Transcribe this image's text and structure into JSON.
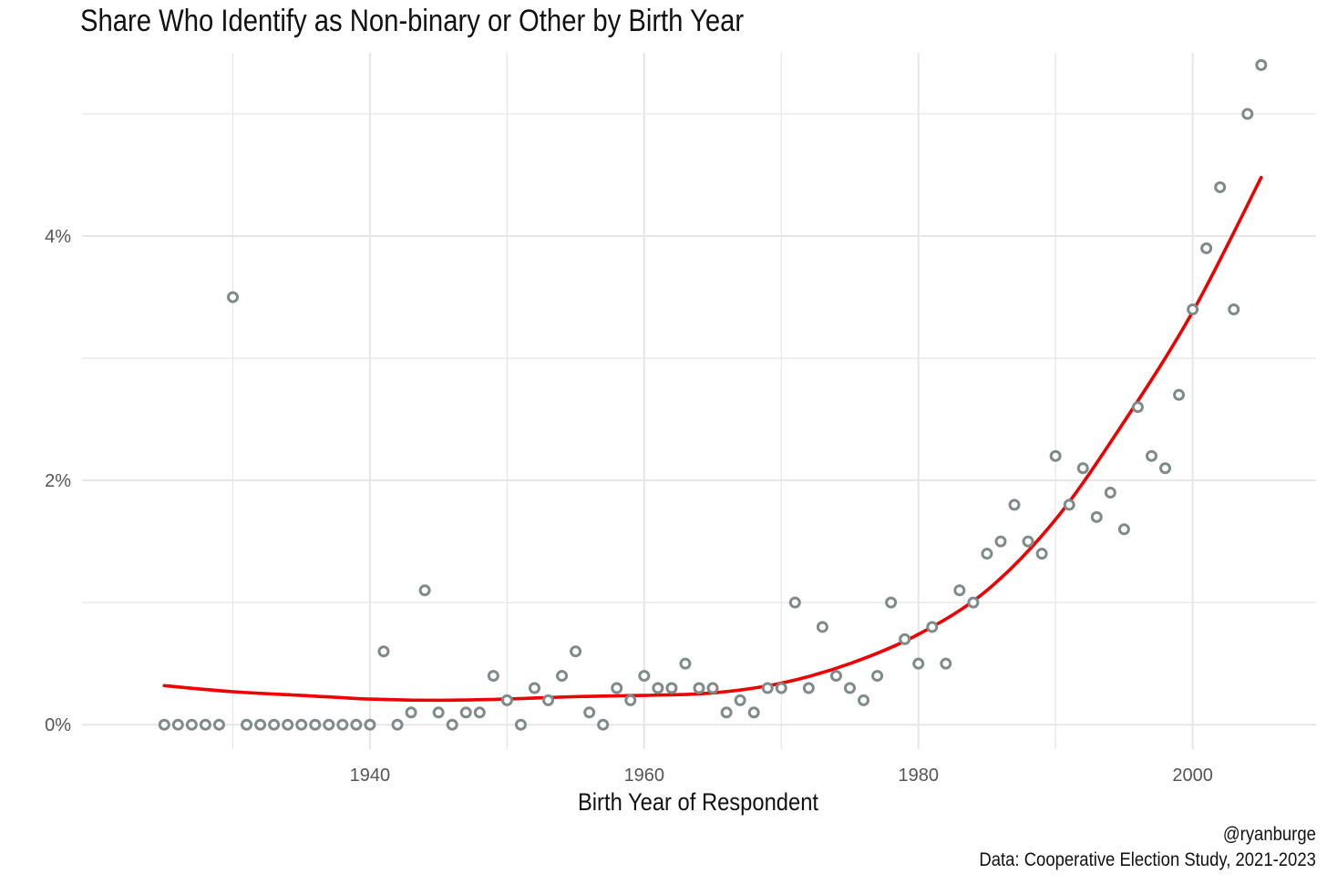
{
  "chart_data": {
    "type": "scatter",
    "title": "Share Who Identify as Non-binary or Other by Birth Year",
    "xlabel": "Birth Year of Respondent",
    "ylabel": "",
    "xlim": [
      1919,
      2009
    ],
    "ylim": [
      -0.2,
      5.5
    ],
    "x_ticks": [
      1940,
      1960,
      1980,
      2000
    ],
    "x_tick_labels": [
      "1940",
      "1960",
      "1980",
      "2000"
    ],
    "y_ticks": [
      0,
      2,
      4
    ],
    "y_tick_labels": [
      "0%",
      "2%",
      "4%"
    ],
    "grid": true,
    "colors": {
      "points": "#7f8a8a",
      "trend": "#ee0000",
      "grid": "#e6e6e6"
    },
    "series": [
      {
        "type": "scatter",
        "points": [
          [
            1925,
            0
          ],
          [
            1926,
            0
          ],
          [
            1927,
            0
          ],
          [
            1928,
            0
          ],
          [
            1929,
            0
          ],
          [
            1930,
            3.5
          ],
          [
            1931,
            0
          ],
          [
            1932,
            0
          ],
          [
            1933,
            0
          ],
          [
            1934,
            0
          ],
          [
            1935,
            0
          ],
          [
            1936,
            0
          ],
          [
            1937,
            0
          ],
          [
            1938,
            0
          ],
          [
            1939,
            0
          ],
          [
            1940,
            0
          ],
          [
            1941,
            0.6
          ],
          [
            1942,
            0
          ],
          [
            1943,
            0.1
          ],
          [
            1944,
            1.1
          ],
          [
            1945,
            0.1
          ],
          [
            1946,
            0
          ],
          [
            1947,
            0.1
          ],
          [
            1948,
            0.1
          ],
          [
            1949,
            0.4
          ],
          [
            1950,
            0.2
          ],
          [
            1951,
            0
          ],
          [
            1952,
            0.3
          ],
          [
            1953,
            0.2
          ],
          [
            1954,
            0.4
          ],
          [
            1955,
            0.6
          ],
          [
            1956,
            0.1
          ],
          [
            1957,
            0
          ],
          [
            1958,
            0.3
          ],
          [
            1959,
            0.2
          ],
          [
            1960,
            0.4
          ],
          [
            1961,
            0.3
          ],
          [
            1962,
            0.3
          ],
          [
            1963,
            0.5
          ],
          [
            1964,
            0.3
          ],
          [
            1965,
            0.3
          ],
          [
            1966,
            0.1
          ],
          [
            1967,
            0.2
          ],
          [
            1968,
            0.1
          ],
          [
            1969,
            0.3
          ],
          [
            1970,
            0.3
          ],
          [
            1971,
            1.0
          ],
          [
            1972,
            0.3
          ],
          [
            1973,
            0.8
          ],
          [
            1974,
            0.4
          ],
          [
            1975,
            0.3
          ],
          [
            1976,
            0.2
          ],
          [
            1977,
            0.4
          ],
          [
            1978,
            1.0
          ],
          [
            1979,
            0.7
          ],
          [
            1980,
            0.5
          ],
          [
            1981,
            0.8
          ],
          [
            1982,
            0.5
          ],
          [
            1983,
            1.1
          ],
          [
            1984,
            1.0
          ],
          [
            1985,
            1.4
          ],
          [
            1986,
            1.5
          ],
          [
            1987,
            1.8
          ],
          [
            1988,
            1.5
          ],
          [
            1989,
            1.4
          ],
          [
            1990,
            2.2
          ],
          [
            1991,
            1.8
          ],
          [
            1992,
            2.1
          ],
          [
            1993,
            1.7
          ],
          [
            1994,
            1.9
          ],
          [
            1995,
            1.6
          ],
          [
            1996,
            2.6
          ],
          [
            1997,
            2.2
          ],
          [
            1998,
            2.1
          ],
          [
            1999,
            2.7
          ],
          [
            2000,
            3.4
          ],
          [
            2001,
            3.9
          ],
          [
            2002,
            4.4
          ],
          [
            2003,
            3.4
          ],
          [
            2004,
            5.0
          ],
          [
            2005,
            5.4
          ]
        ]
      },
      {
        "type": "line",
        "points": [
          [
            1925,
            0.32
          ],
          [
            1930,
            0.27
          ],
          [
            1935,
            0.24
          ],
          [
            1940,
            0.21
          ],
          [
            1945,
            0.2
          ],
          [
            1950,
            0.21
          ],
          [
            1955,
            0.23
          ],
          [
            1960,
            0.24
          ],
          [
            1965,
            0.26
          ],
          [
            1970,
            0.34
          ],
          [
            1975,
            0.5
          ],
          [
            1980,
            0.74
          ],
          [
            1985,
            1.1
          ],
          [
            1990,
            1.68
          ],
          [
            1995,
            2.48
          ],
          [
            2000,
            3.38
          ],
          [
            2005,
            4.48
          ]
        ]
      }
    ]
  },
  "captions": {
    "handle": "@ryanburge",
    "source": "Data: Cooperative Election Study, 2021-2023"
  }
}
